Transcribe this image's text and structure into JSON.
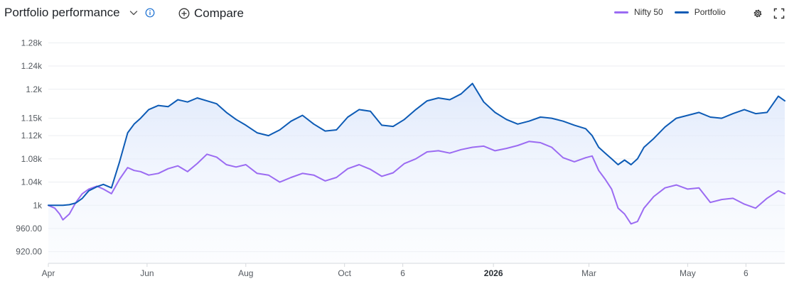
{
  "header": {
    "title": "Portfolio performance",
    "compare_label": "Compare"
  },
  "colors": {
    "portfolio": "#0d5bb5",
    "nifty": "#9b6bf2",
    "grid": "#eceef1",
    "axis": "#d6d9dd"
  },
  "icons": [
    "chevron-down-icon",
    "info-icon",
    "plus-circle-icon",
    "gear-icon",
    "expand-icon"
  ],
  "chart_data": {
    "type": "line",
    "title": "",
    "xlabel": "",
    "ylabel": "",
    "ylim": [
      900,
      1300
    ],
    "y_ticks": [
      920,
      960,
      1000,
      1040,
      1080,
      1120,
      1150,
      1200,
      1240,
      1280
    ],
    "y_tick_labels": [
      "920.00",
      "960.00",
      "1k",
      "1.04k",
      "1.08k",
      "1.12k",
      "1.15k",
      "1.2k",
      "1.24k",
      "1.28k"
    ],
    "x_tick_labels": [
      {
        "label": "Apr",
        "bold": false,
        "date": "2025-04-01"
      },
      {
        "label": "Jun",
        "bold": false,
        "date": "2025-06-01"
      },
      {
        "label": "Aug",
        "bold": false,
        "date": "2025-08-01"
      },
      {
        "label": "Oct",
        "bold": false,
        "date": "2025-10-01"
      },
      {
        "label": "6",
        "bold": false,
        "date": "2025-11-06"
      },
      {
        "label": "2026",
        "bold": true,
        "date": "2026-01-01"
      },
      {
        "label": "Mar",
        "bold": false,
        "date": "2026-03-01"
      },
      {
        "label": "May",
        "bold": false,
        "date": "2026-05-01"
      },
      {
        "label": "6",
        "bold": false,
        "date": "2026-06-06"
      }
    ],
    "x_range": [
      "2025-04-01",
      "2026-06-30"
    ],
    "legend": {
      "placement": "top-right"
    },
    "grid": true,
    "series": [
      {
        "name": "Nifty 50",
        "color": "#9b6bf2",
        "x": [
          "2025-04-01",
          "2025-04-05",
          "2025-04-08",
          "2025-04-10",
          "2025-04-14",
          "2025-04-18",
          "2025-04-22",
          "2025-04-26",
          "2025-05-01",
          "2025-05-05",
          "2025-05-10",
          "2025-05-15",
          "2025-05-20",
          "2025-05-24",
          "2025-05-28",
          "2025-06-02",
          "2025-06-08",
          "2025-06-14",
          "2025-06-20",
          "2025-06-26",
          "2025-07-02",
          "2025-07-08",
          "2025-07-14",
          "2025-07-20",
          "2025-07-26",
          "2025-08-01",
          "2025-08-08",
          "2025-08-15",
          "2025-08-22",
          "2025-08-29",
          "2025-09-05",
          "2025-09-12",
          "2025-09-19",
          "2025-09-26",
          "2025-10-03",
          "2025-10-10",
          "2025-10-17",
          "2025-10-24",
          "2025-10-31",
          "2025-11-07",
          "2025-11-14",
          "2025-11-21",
          "2025-11-28",
          "2025-12-05",
          "2025-12-12",
          "2025-12-19",
          "2025-12-26",
          "2026-01-02",
          "2026-01-09",
          "2026-01-16",
          "2026-01-23",
          "2026-01-30",
          "2026-02-06",
          "2026-02-13",
          "2026-02-20",
          "2026-02-27",
          "2026-03-03",
          "2026-03-07",
          "2026-03-11",
          "2026-03-15",
          "2026-03-19",
          "2026-03-23",
          "2026-03-27",
          "2026-03-31",
          "2026-04-04",
          "2026-04-10",
          "2026-04-17",
          "2026-04-24",
          "2026-05-01",
          "2026-05-08",
          "2026-05-15",
          "2026-05-22",
          "2026-05-29",
          "2026-06-05",
          "2026-06-12",
          "2026-06-19",
          "2026-06-26",
          "2026-06-30"
        ],
        "y": [
          1000,
          995,
          985,
          975,
          985,
          1005,
          1020,
          1028,
          1033,
          1028,
          1020,
          1045,
          1065,
          1060,
          1058,
          1052,
          1055,
          1063,
          1068,
          1058,
          1072,
          1088,
          1083,
          1070,
          1066,
          1070,
          1055,
          1052,
          1040,
          1048,
          1055,
          1052,
          1042,
          1048,
          1063,
          1070,
          1062,
          1050,
          1056,
          1072,
          1080,
          1092,
          1094,
          1090,
          1096,
          1100,
          1102,
          1094,
          1098,
          1103,
          1110,
          1108,
          1100,
          1082,
          1075,
          1082,
          1085,
          1060,
          1045,
          1028,
          995,
          985,
          968,
          972,
          995,
          1015,
          1030,
          1035,
          1028,
          1030,
          1005,
          1010,
          1012,
          1002,
          995,
          1012,
          1025,
          1020
        ]
      },
      {
        "name": "Portfolio",
        "color": "#0d5bb5",
        "x": [
          "2025-04-01",
          "2025-04-05",
          "2025-04-08",
          "2025-04-10",
          "2025-04-14",
          "2025-04-18",
          "2025-04-22",
          "2025-04-26",
          "2025-05-01",
          "2025-05-05",
          "2025-05-10",
          "2025-05-15",
          "2025-05-20",
          "2025-05-24",
          "2025-05-28",
          "2025-06-02",
          "2025-06-08",
          "2025-06-14",
          "2025-06-20",
          "2025-06-26",
          "2025-07-02",
          "2025-07-08",
          "2025-07-14",
          "2025-07-20",
          "2025-07-26",
          "2025-08-01",
          "2025-08-08",
          "2025-08-15",
          "2025-08-22",
          "2025-08-29",
          "2025-09-05",
          "2025-09-12",
          "2025-09-19",
          "2025-09-26",
          "2025-10-03",
          "2025-10-10",
          "2025-10-17",
          "2025-10-24",
          "2025-10-31",
          "2025-11-07",
          "2025-11-14",
          "2025-11-21",
          "2025-11-28",
          "2025-12-05",
          "2025-12-12",
          "2025-12-19",
          "2025-12-26",
          "2026-01-02",
          "2026-01-09",
          "2026-01-16",
          "2026-01-23",
          "2026-01-30",
          "2026-02-06",
          "2026-02-13",
          "2026-02-20",
          "2026-02-27",
          "2026-03-03",
          "2026-03-07",
          "2026-03-11",
          "2026-03-15",
          "2026-03-19",
          "2026-03-23",
          "2026-03-27",
          "2026-03-31",
          "2026-04-04",
          "2026-04-10",
          "2026-04-17",
          "2026-04-24",
          "2026-05-01",
          "2026-05-08",
          "2026-05-15",
          "2026-05-22",
          "2026-05-29",
          "2026-06-05",
          "2026-06-12",
          "2026-06-19",
          "2026-06-26",
          "2026-06-30"
        ],
        "y": [
          1000,
          1000,
          1000,
          1000,
          1001,
          1004,
          1012,
          1025,
          1032,
          1036,
          1030,
          1075,
          1125,
          1140,
          1150,
          1165,
          1172,
          1170,
          1182,
          1178,
          1185,
          1180,
          1175,
          1160,
          1148,
          1138,
          1125,
          1120,
          1130,
          1145,
          1155,
          1140,
          1128,
          1130,
          1152,
          1165,
          1162,
          1138,
          1136,
          1148,
          1165,
          1180,
          1185,
          1182,
          1192,
          1210,
          1178,
          1160,
          1148,
          1140,
          1145,
          1152,
          1150,
          1145,
          1138,
          1132,
          1120,
          1100,
          1090,
          1080,
          1070,
          1078,
          1070,
          1080,
          1100,
          1115,
          1135,
          1150,
          1155,
          1160,
          1152,
          1150,
          1158,
          1165,
          1158,
          1160,
          1188,
          1180
        ]
      }
    ]
  }
}
